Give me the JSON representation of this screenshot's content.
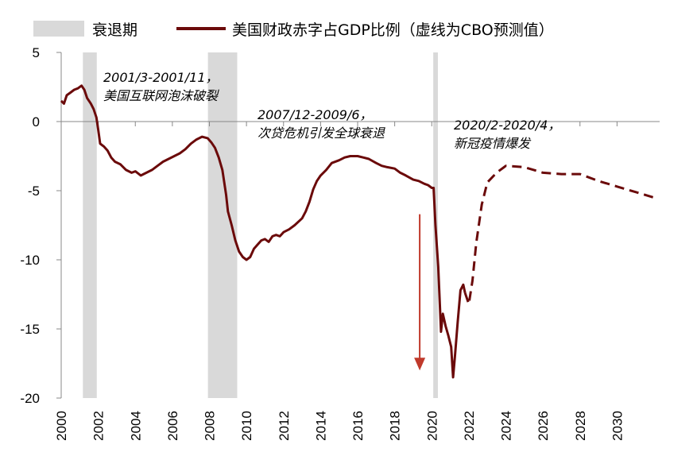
{
  "chart_data": {
    "type": "line",
    "xlim": [
      2000,
      2032.3
    ],
    "ylim": [
      -20,
      5
    ],
    "y_ticks": [
      5,
      0,
      -5,
      -10,
      -15,
      -20
    ],
    "x_ticks": [
      2000,
      2002,
      2004,
      2006,
      2008,
      2010,
      2012,
      2014,
      2016,
      2018,
      2020,
      2022,
      2024,
      2026,
      2028,
      2030
    ],
    "legend": {
      "recession_label": "衰退期",
      "series_label": "美国财政赤字占GDP比例（虚线为CBO预测值）"
    },
    "recessions": [
      {
        "start": 2001.17,
        "end": 2001.92
      },
      {
        "start": 2007.92,
        "end": 2009.5
      },
      {
        "start": 2020.08,
        "end": 2020.33
      }
    ],
    "annotations": [
      {
        "lines": [
          "2001/3-2001/11，",
          "美国互联网泡沫破裂"
        ]
      },
      {
        "lines": [
          "2007/12-2009/6，",
          "次贷危机引发全球衰退"
        ]
      },
      {
        "lines": [
          "2020/2-2020/4，",
          "新冠疫情爆发"
        ]
      }
    ],
    "series": [
      {
        "style": "solid",
        "color": "#6b0a0a",
        "points": [
          [
            2000.0,
            1.5
          ],
          [
            2000.15,
            1.3
          ],
          [
            2000.3,
            1.9
          ],
          [
            2000.5,
            2.1
          ],
          [
            2000.7,
            2.3
          ],
          [
            2000.9,
            2.4
          ],
          [
            2001.1,
            2.6
          ],
          [
            2001.25,
            2.3
          ],
          [
            2001.4,
            1.7
          ],
          [
            2001.6,
            1.3
          ],
          [
            2001.75,
            0.9
          ],
          [
            2001.9,
            0.3
          ],
          [
            2002.0,
            -0.6
          ],
          [
            2002.1,
            -1.6
          ],
          [
            2002.3,
            -1.8
          ],
          [
            2002.5,
            -2.1
          ],
          [
            2002.7,
            -2.6
          ],
          [
            2002.9,
            -2.9
          ],
          [
            2003.2,
            -3.1
          ],
          [
            2003.5,
            -3.5
          ],
          [
            2003.8,
            -3.7
          ],
          [
            2004.0,
            -3.6
          ],
          [
            2004.3,
            -3.9
          ],
          [
            2004.6,
            -3.7
          ],
          [
            2004.9,
            -3.5
          ],
          [
            2005.2,
            -3.2
          ],
          [
            2005.5,
            -2.9
          ],
          [
            2005.8,
            -2.7
          ],
          [
            2006.1,
            -2.5
          ],
          [
            2006.4,
            -2.3
          ],
          [
            2006.7,
            -2.0
          ],
          [
            2007.0,
            -1.6
          ],
          [
            2007.3,
            -1.3
          ],
          [
            2007.6,
            -1.1
          ],
          [
            2007.9,
            -1.2
          ],
          [
            2008.1,
            -1.5
          ],
          [
            2008.3,
            -1.9
          ],
          [
            2008.5,
            -2.6
          ],
          [
            2008.7,
            -3.5
          ],
          [
            2008.9,
            -5.3
          ],
          [
            2009.0,
            -6.5
          ],
          [
            2009.2,
            -7.5
          ],
          [
            2009.4,
            -8.6
          ],
          [
            2009.6,
            -9.4
          ],
          [
            2009.8,
            -9.8
          ],
          [
            2010.0,
            -10.0
          ],
          [
            2010.2,
            -9.8
          ],
          [
            2010.4,
            -9.2
          ],
          [
            2010.6,
            -8.9
          ],
          [
            2010.8,
            -8.6
          ],
          [
            2011.0,
            -8.5
          ],
          [
            2011.2,
            -8.7
          ],
          [
            2011.4,
            -8.3
          ],
          [
            2011.6,
            -8.2
          ],
          [
            2011.8,
            -8.3
          ],
          [
            2012.0,
            -8.0
          ],
          [
            2012.3,
            -7.8
          ],
          [
            2012.6,
            -7.5
          ],
          [
            2013.0,
            -7.0
          ],
          [
            2013.2,
            -6.5
          ],
          [
            2013.4,
            -5.8
          ],
          [
            2013.6,
            -4.9
          ],
          [
            2013.8,
            -4.3
          ],
          [
            2014.0,
            -3.9
          ],
          [
            2014.3,
            -3.5
          ],
          [
            2014.6,
            -3.0
          ],
          [
            2015.0,
            -2.8
          ],
          [
            2015.3,
            -2.6
          ],
          [
            2015.6,
            -2.5
          ],
          [
            2016.0,
            -2.5
          ],
          [
            2016.3,
            -2.6
          ],
          [
            2016.6,
            -2.7
          ],
          [
            2017.0,
            -3.0
          ],
          [
            2017.3,
            -3.2
          ],
          [
            2017.6,
            -3.3
          ],
          [
            2018.0,
            -3.4
          ],
          [
            2018.3,
            -3.7
          ],
          [
            2018.6,
            -3.9
          ],
          [
            2019.0,
            -4.2
          ],
          [
            2019.3,
            -4.3
          ],
          [
            2019.6,
            -4.5
          ],
          [
            2019.8,
            -4.6
          ],
          [
            2020.0,
            -4.8
          ],
          [
            2020.1,
            -4.8
          ],
          [
            2020.2,
            -7.5
          ],
          [
            2020.35,
            -10.5
          ],
          [
            2020.5,
            -15.2
          ],
          [
            2020.6,
            -13.9
          ],
          [
            2020.75,
            -14.8
          ],
          [
            2020.9,
            -15.5
          ],
          [
            2021.05,
            -16.3
          ],
          [
            2021.15,
            -18.5
          ],
          [
            2021.25,
            -17.0
          ],
          [
            2021.4,
            -14.5
          ],
          [
            2021.55,
            -12.2
          ],
          [
            2021.7,
            -11.8
          ],
          [
            2021.8,
            -12.4
          ]
        ]
      },
      {
        "style": "dashed",
        "color": "#6b0a0a",
        "points": [
          [
            2021.8,
            -12.4
          ],
          [
            2022.0,
            -13.2
          ],
          [
            2022.2,
            -11.5
          ],
          [
            2022.4,
            -8.8
          ],
          [
            2022.7,
            -6.0
          ],
          [
            2023.0,
            -4.4
          ],
          [
            2023.5,
            -3.7
          ],
          [
            2024.0,
            -3.2
          ],
          [
            2025.0,
            -3.3
          ],
          [
            2026.0,
            -3.7
          ],
          [
            2027.0,
            -3.8
          ],
          [
            2028.0,
            -3.8
          ],
          [
            2029.0,
            -4.3
          ],
          [
            2030.0,
            -4.7
          ],
          [
            2031.0,
            -5.1
          ],
          [
            2032.0,
            -5.5
          ]
        ]
      }
    ],
    "arrow": {
      "from": [
        2019.35,
        -6.7
      ],
      "to": [
        2019.35,
        -18.0
      ],
      "color": "#c0392b"
    }
  }
}
